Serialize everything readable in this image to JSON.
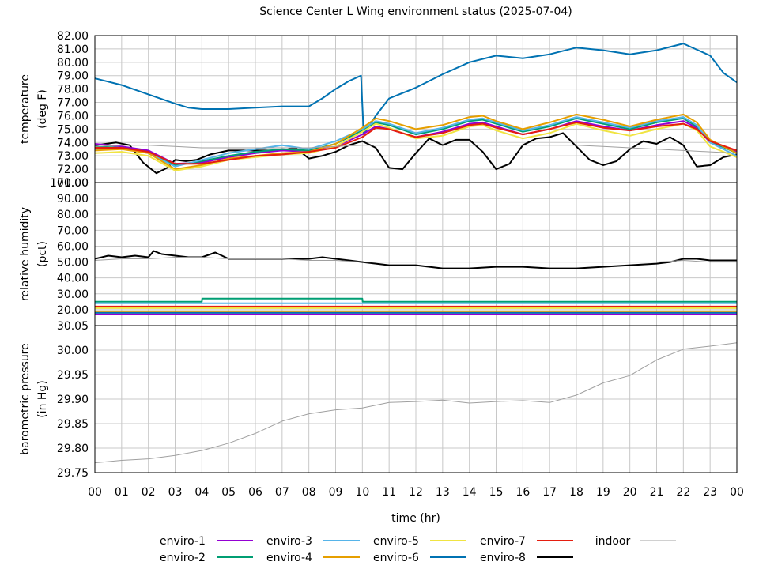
{
  "chart_data": {
    "type": "line",
    "title": "Science Center L Wing environment status (2025-07-04)",
    "xlabel": "time (hr)",
    "x_ticks": [
      "00",
      "01",
      "02",
      "03",
      "04",
      "05",
      "06",
      "07",
      "08",
      "09",
      "10",
      "11",
      "12",
      "13",
      "14",
      "15",
      "16",
      "17",
      "18",
      "19",
      "20",
      "21",
      "22",
      "23",
      "00"
    ],
    "xlim": [
      0,
      24
    ],
    "colors": {
      "enviro-1": "#9400d3",
      "enviro-2": "#009e73",
      "enviro-3": "#56b4e9",
      "enviro-4": "#e69f00",
      "enviro-5": "#f0e442",
      "enviro-6": "#0072b2",
      "enviro-7": "#e51e10",
      "enviro-8": "#000000",
      "indoor": "#a0a0a0"
    },
    "legend": {
      "placement": "bottom",
      "entries": [
        "enviro-1",
        "enviro-2",
        "enviro-3",
        "enviro-4",
        "enviro-5",
        "enviro-6",
        "enviro-7",
        "enviro-8",
        "indoor"
      ]
    },
    "panels": [
      {
        "name": "temperature",
        "ylabel": [
          "temperature",
          "(deg F)"
        ],
        "ylim": [
          71.0,
          82.0
        ],
        "y_ticks": [
          "72.00",
          "73.00",
          "74.00",
          "75.00",
          "76.00",
          "77.00",
          "78.00",
          "79.00",
          "80.00",
          "81.00",
          "82.00"
        ],
        "bottom_label": "71.00",
        "series": [
          {
            "name": "enviro-6",
            "x": [
              0,
              1,
              2,
              3,
              3.5,
              4,
              5,
              6,
              7,
              8,
              8.5,
              9,
              9.5,
              9.95,
              10.05,
              10.5,
              11,
              12,
              13,
              14,
              15,
              16,
              17,
              18,
              19,
              20,
              21,
              22,
              23,
              23.5,
              24
            ],
            "y": [
              78.8,
              78.3,
              77.6,
              76.9,
              76.6,
              76.5,
              76.5,
              76.6,
              76.7,
              76.7,
              77.3,
              78.0,
              78.6,
              79.0,
              74.6,
              76.0,
              77.3,
              78.1,
              79.1,
              80.0,
              80.5,
              80.3,
              80.6,
              81.1,
              80.9,
              80.6,
              80.9,
              81.4,
              80.5,
              79.2,
              78.5
            ]
          },
          {
            "name": "enviro-8",
            "x": [
              0,
              0.8,
              1.3,
              1.8,
              2.3,
              2.7,
              3,
              3.4,
              3.8,
              4.3,
              5,
              6,
              7,
              7.5,
              8,
              8.5,
              9,
              9.5,
              10,
              10.5,
              11,
              11.5,
              12,
              12.5,
              13,
              13.5,
              14,
              14.5,
              15,
              15.5,
              16,
              16.5,
              17,
              17.5,
              18,
              18.5,
              19,
              19.5,
              20,
              20.5,
              21,
              21.5,
              22,
              22.5,
              23,
              23.5,
              24
            ],
            "y": [
              73.8,
              74.0,
              73.8,
              72.5,
              71.7,
              72.1,
              72.7,
              72.6,
              72.7,
              73.1,
              73.4,
              73.4,
              73.4,
              73.6,
              72.8,
              73.0,
              73.3,
              73.8,
              74.1,
              73.6,
              72.1,
              72.0,
              73.2,
              74.3,
              73.8,
              74.2,
              74.2,
              73.3,
              72.0,
              72.4,
              73.8,
              74.3,
              74.4,
              74.7,
              73.7,
              72.7,
              72.3,
              72.6,
              73.5,
              74.1,
              73.9,
              74.4,
              73.8,
              72.2,
              72.3,
              72.9,
              73.1
            ]
          },
          {
            "name": "enviro-1",
            "x": [
              0,
              1,
              2,
              3,
              4,
              5,
              6,
              7,
              8,
              9,
              10,
              10.5,
              11,
              12,
              13,
              14,
              14.5,
              15,
              16,
              17,
              18,
              19,
              20,
              21,
              22,
              22.5,
              23,
              24
            ],
            "y": [
              73.9,
              73.7,
              73.4,
              72.4,
              72.5,
              72.9,
              73.2,
              73.4,
              73.3,
              73.7,
              74.6,
              75.2,
              75.0,
              74.4,
              74.8,
              75.4,
              75.5,
              75.2,
              74.6,
              75.0,
              75.6,
              75.2,
              74.9,
              75.3,
              75.6,
              75.1,
              74.0,
              73.3
            ]
          },
          {
            "name": "enviro-2",
            "x": [
              0,
              1,
              2,
              3,
              4,
              5,
              6,
              7,
              8,
              9,
              10,
              10.5,
              11,
              12,
              13,
              14,
              14.5,
              15,
              16,
              17,
              18,
              19,
              20,
              21,
              22,
              22.5,
              23,
              24
            ],
            "y": [
              73.7,
              73.6,
              73.3,
              72.3,
              72.6,
              73.0,
              73.3,
              73.5,
              73.4,
              73.9,
              74.9,
              75.5,
              75.3,
              74.6,
              75.0,
              75.6,
              75.7,
              75.4,
              74.8,
              75.2,
              75.8,
              75.4,
              75.0,
              75.5,
              75.8,
              75.2,
              74.1,
              73.2
            ]
          },
          {
            "name": "enviro-3",
            "x": [
              0,
              1,
              2,
              3,
              4,
              5,
              6,
              7,
              8,
              9,
              10,
              10.5,
              11,
              12,
              13,
              14,
              14.5,
              15,
              16,
              17,
              18,
              19,
              20,
              21,
              22,
              22.5,
              23,
              24
            ],
            "y": [
              73.5,
              73.6,
              73.2,
              72.2,
              72.7,
              73.2,
              73.5,
              73.8,
              73.5,
              74.1,
              75.0,
              75.6,
              75.4,
              74.7,
              75.1,
              75.7,
              75.8,
              75.5,
              74.9,
              75.3,
              75.9,
              75.5,
              75.1,
              75.6,
              75.9,
              75.3,
              74.0,
              73.0
            ]
          },
          {
            "name": "enviro-4",
            "x": [
              0,
              1,
              2,
              3,
              4,
              5,
              6,
              7,
              8,
              9,
              10,
              10.5,
              11,
              12,
              13,
              14,
              14.5,
              15,
              16,
              17,
              18,
              19,
              20,
              21,
              22,
              22.5,
              23,
              24
            ],
            "y": [
              73.4,
              73.5,
              73.2,
              72.0,
              72.3,
              72.8,
              73.0,
              73.2,
              73.3,
              73.9,
              75.1,
              75.8,
              75.6,
              75.0,
              75.3,
              75.9,
              76.0,
              75.6,
              75.0,
              75.5,
              76.1,
              75.7,
              75.2,
              75.7,
              76.1,
              75.5,
              74.2,
              73.2
            ]
          },
          {
            "name": "enviro-5",
            "x": [
              0,
              1,
              2,
              3,
              4,
              5,
              6,
              7,
              8,
              9,
              10,
              10.5,
              11,
              12,
              13,
              14,
              14.5,
              15,
              16,
              17,
              18,
              19,
              20,
              21,
              22,
              22.5,
              23,
              24
            ],
            "y": [
              73.2,
              73.3,
              73.0,
              71.9,
              72.2,
              72.7,
              72.9,
              73.1,
              73.2,
              73.7,
              74.8,
              75.4,
              75.1,
              74.3,
              74.5,
              75.2,
              75.3,
              74.9,
              74.3,
              74.7,
              75.4,
              74.9,
              74.5,
              75.0,
              75.4,
              74.9,
              73.7,
              72.9
            ]
          },
          {
            "name": "enviro-7",
            "x": [
              0,
              1,
              2,
              3,
              4,
              5,
              6,
              7,
              8,
              9,
              10,
              10.5,
              11,
              12,
              13,
              14,
              14.5,
              15,
              16,
              17,
              18,
              19,
              20,
              21,
              22,
              22.5,
              23,
              24
            ],
            "y": [
              73.6,
              73.6,
              73.3,
              72.4,
              72.4,
              72.7,
              73.0,
              73.1,
              73.3,
              73.6,
              74.4,
              75.1,
              75.0,
              74.4,
              74.7,
              75.3,
              75.4,
              75.1,
              74.6,
              75.0,
              75.5,
              75.1,
              74.9,
              75.2,
              75.4,
              75.0,
              74.1,
              73.4
            ]
          },
          {
            "name": "indoor",
            "x": [
              0,
              1,
              2,
              3,
              4,
              5,
              6,
              7,
              8,
              9,
              10,
              11,
              12,
              13,
              14,
              15,
              16,
              17,
              18,
              19,
              20,
              21,
              22,
              23,
              24
            ],
            "y": [
              73.7,
              73.8,
              73.8,
              73.7,
              73.6,
              73.6,
              73.6,
              73.6,
              73.6,
              73.7,
              73.8,
              73.8,
              73.8,
              73.8,
              73.8,
              73.8,
              73.8,
              73.8,
              73.8,
              73.7,
              73.6,
              73.5,
              73.4,
              73.3,
              73.2
            ]
          }
        ]
      },
      {
        "name": "humidity",
        "ylabel": [
          "relative humidity",
          "(pct)"
        ],
        "ylim": [
          10.0,
          100.0
        ],
        "y_ticks": [
          "20.00",
          "30.00",
          "40.00",
          "50.00",
          "60.00",
          "70.00",
          "80.00",
          "90.00"
        ],
        "top_label": "100.00",
        "series": [
          {
            "name": "enviro-8",
            "x": [
              0,
              0.5,
              1,
              1.5,
              2,
              2.2,
              2.5,
              3,
              3.5,
              4,
              4.5,
              5,
              6,
              7,
              8,
              8.5,
              9,
              9.5,
              10,
              10.5,
              11,
              12,
              13,
              14,
              15,
              16,
              17,
              18,
              19,
              20,
              21,
              21.5,
              22,
              22.5,
              23,
              23.5,
              24
            ],
            "y": [
              52,
              54,
              53,
              54,
              53,
              57,
              55,
              54,
              53,
              53,
              56,
              52,
              52,
              52,
              52,
              53,
              52,
              51,
              50,
              49,
              48,
              48,
              46,
              46,
              47,
              47,
              46,
              46,
              47,
              48,
              49,
              50,
              52,
              52,
              51,
              51,
              51
            ]
          },
          {
            "name": "indoor",
            "x": [
              0,
              1,
              2,
              3,
              4,
              5,
              6,
              7,
              8,
              9,
              10,
              11,
              12,
              13,
              14,
              15,
              16,
              17,
              18,
              19,
              20,
              21,
              22,
              23,
              24
            ],
            "y": [
              51,
              52,
              52,
              53,
              53,
              52,
              52,
              52,
              51,
              51,
              50,
              50,
              50,
              50,
              50,
              50,
              50,
              50,
              50,
              50,
              50,
              50,
              51,
              50,
              50
            ]
          },
          {
            "name": "enviro-2",
            "x": [
              0,
              4,
              4.01,
              10,
              10.01,
              24
            ],
            "y": [
              25,
              25,
              27,
              27,
              25,
              25
            ]
          },
          {
            "name": "enviro-3",
            "x": [
              0,
              24
            ],
            "y": [
              24,
              24
            ]
          },
          {
            "name": "enviro-7",
            "x": [
              0,
              24
            ],
            "y": [
              22,
              22
            ]
          },
          {
            "name": "enviro-5",
            "x": [
              0,
              24
            ],
            "y": [
              21,
              21
            ]
          },
          {
            "name": "enviro-4",
            "x": [
              0,
              24
            ],
            "y": [
              19,
              19
            ]
          },
          {
            "name": "enviro-6",
            "x": [
              0,
              24
            ],
            "y": [
              18,
              18
            ]
          },
          {
            "name": "enviro-1",
            "x": [
              0,
              24
            ],
            "y": [
              17,
              17
            ]
          }
        ]
      },
      {
        "name": "pressure",
        "ylabel": [
          "barometric pressure",
          "(in Hg)"
        ],
        "ylim": [
          29.75,
          30.05
        ],
        "y_ticks": [
          "29.75",
          "29.80",
          "29.85",
          "29.90",
          "29.95",
          "30.00"
        ],
        "top_label": "30.05",
        "series": [
          {
            "name": "indoor",
            "x": [
              0,
              1,
              2,
              3,
              4,
              5,
              6,
              7,
              8,
              9,
              10,
              11,
              12,
              13,
              14,
              15,
              16,
              17,
              18,
              19,
              20,
              21,
              22,
              23,
              24
            ],
            "y": [
              29.77,
              29.775,
              29.778,
              29.785,
              29.795,
              29.81,
              29.83,
              29.855,
              29.87,
              29.878,
              29.882,
              29.893,
              29.895,
              29.898,
              29.892,
              29.895,
              29.897,
              29.893,
              29.908,
              29.933,
              29.948,
              29.98,
              30.002,
              30.008,
              30.015
            ]
          }
        ]
      }
    ]
  }
}
